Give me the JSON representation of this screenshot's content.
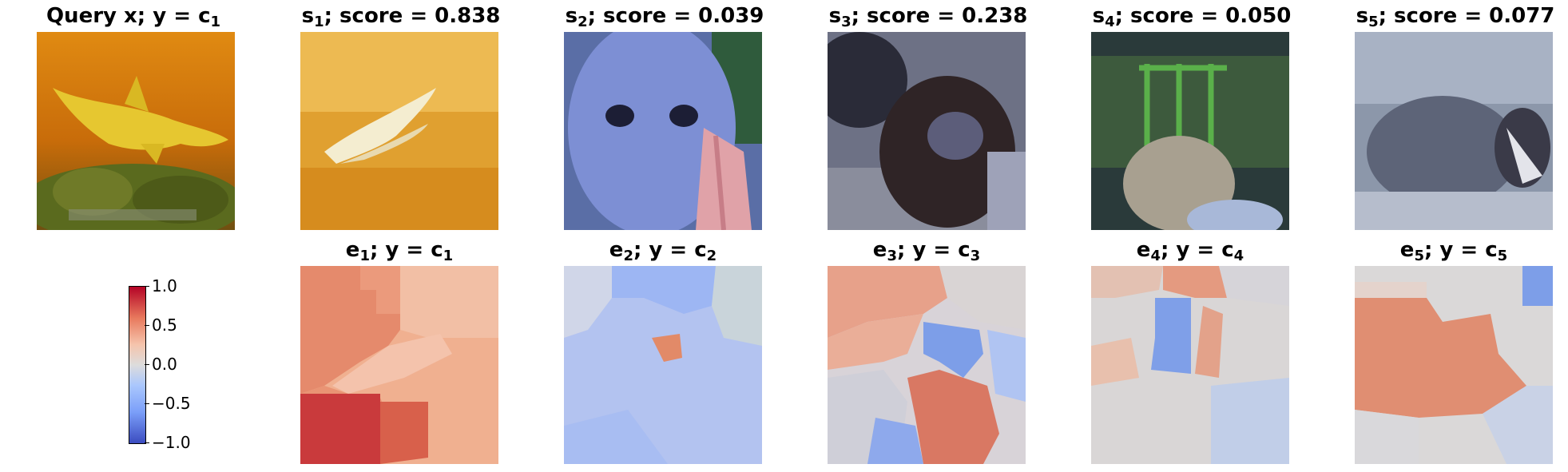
{
  "query_panel": {
    "title": "Query x; y = c",
    "title_sub": "1"
  },
  "top_row": [
    {
      "s": "s",
      "sub": "1",
      "score_text": "; score = 0.838",
      "score": 0.838
    },
    {
      "s": "s",
      "sub": "2",
      "score_text": "; score = 0.039",
      "score": 0.039
    },
    {
      "s": "s",
      "sub": "3",
      "score_text": "; score = 0.238",
      "score": 0.238
    },
    {
      "s": "s",
      "sub": "4",
      "score_text": "; score = 0.050",
      "score": 0.05
    },
    {
      "s": "s",
      "sub": "5",
      "score_text": "; score = 0.077",
      "score": 0.077
    }
  ],
  "bottom_row": [
    {
      "e": "e",
      "e_sub": "1",
      "mid": "; y = c",
      "c_sub": "1"
    },
    {
      "e": "e",
      "e_sub": "2",
      "mid": "; y = c",
      "c_sub": "2"
    },
    {
      "e": "e",
      "e_sub": "3",
      "mid": "; y = c",
      "c_sub": "3"
    },
    {
      "e": "e",
      "e_sub": "4",
      "mid": "; y = c",
      "c_sub": "4"
    },
    {
      "e": "e",
      "e_sub": "5",
      "mid": "; y = c",
      "c_sub": "5"
    }
  ],
  "colorbar": {
    "colormap": "coolwarm",
    "ticks": [
      "1.0",
      "0.5",
      "0.0",
      "−0.5",
      "−1.0"
    ],
    "range": [
      -1.0,
      1.0
    ]
  },
  "colors": {
    "pos": "#b40426",
    "neg": "#3b4cc0",
    "neutral": "#dddcdc"
  }
}
